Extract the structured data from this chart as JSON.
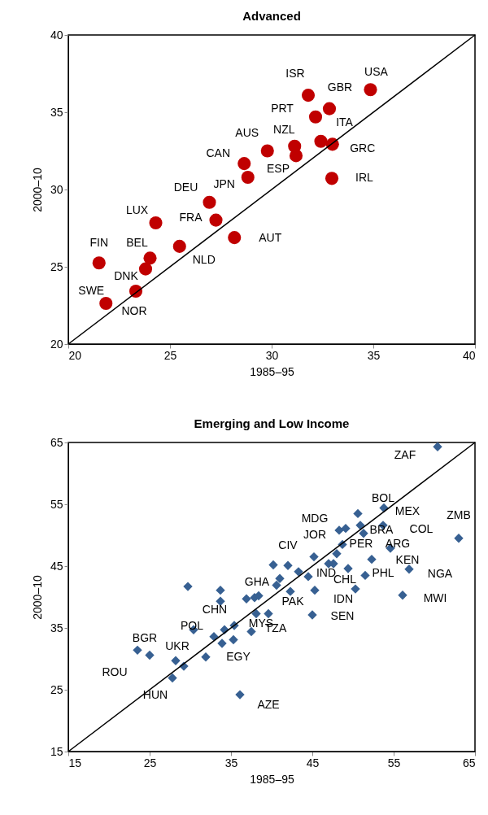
{
  "chart_data": [
    {
      "type": "scatter",
      "title": "Advanced",
      "xlabel": "1985–95",
      "ylabel": "2000–10",
      "marker": "circle",
      "xlim": [
        20,
        40
      ],
      "ylim": [
        20,
        40
      ],
      "xticks": [
        20,
        25,
        30,
        35,
        40
      ],
      "yticks": [
        20,
        25,
        30,
        35,
        40
      ],
      "series": [
        {
          "color": "#c00000",
          "x": [
            31.8,
            34.86,
            32.84,
            32.16,
            32.42,
            32.99,
            31.13,
            31.2,
            29.79,
            28.65,
            28.83,
            32.96,
            26.94,
            27.26,
            24.3,
            28.17,
            25.47,
            24.02,
            23.8,
            21.51,
            23.32,
            21.85
          ],
          "values": [
            36.1,
            36.46,
            35.23,
            34.7,
            33.12,
            32.93,
            32.8,
            32.19,
            32.5,
            31.68,
            30.79,
            30.72,
            29.17,
            28.02,
            27.84,
            26.89,
            26.32,
            25.56,
            24.86,
            25.25,
            23.42,
            22.63
          ]
        },
        {
          "type": "line",
          "marker": "none",
          "color": "#000000",
          "x": [
            20,
            40
          ],
          "values": [
            20,
            40
          ]
        }
      ],
      "annotations": [
        {
          "text": "ISR",
          "x": 31.8,
          "y": 36.1
        },
        {
          "text": "USA",
          "x": 34.86,
          "y": 36.46
        },
        {
          "text": "GBR",
          "x": 32.84,
          "y": 35.23
        },
        {
          "text": "PRT",
          "x": 32.16,
          "y": 34.7
        },
        {
          "text": "ITA",
          "x": 32.42,
          "y": 33.12
        },
        {
          "text": "AUS",
          "x": 29.79,
          "y": 32.5
        },
        {
          "text": "NZL",
          "x": 31.13,
          "y": 32.8
        },
        {
          "text": "CAN",
          "x": 28.65,
          "y": 31.68
        },
        {
          "text": "GRC",
          "x": 32.99,
          "y": 32.93
        },
        {
          "text": "ESP",
          "x": 31.2,
          "y": 32.19
        },
        {
          "text": "IRL",
          "x": 32.96,
          "y": 30.72
        },
        {
          "text": "DEU",
          "x": 26.94,
          "y": 29.17
        },
        {
          "text": "JPN",
          "x": 28.83,
          "y": 30.79
        },
        {
          "text": "LUX",
          "x": 24.3,
          "y": 27.84
        },
        {
          "text": "FRA",
          "x": 27.26,
          "y": 28.02
        },
        {
          "text": "AUT",
          "x": 28.17,
          "y": 26.89
        },
        {
          "text": "FIN",
          "x": 21.51,
          "y": 25.25
        },
        {
          "text": "BEL",
          "x": 24.02,
          "y": 25.56
        },
        {
          "text": "NLD",
          "x": 25.47,
          "y": 26.32
        },
        {
          "text": "DNK",
          "x": 23.8,
          "y": 24.86
        },
        {
          "text": "SWE",
          "x": 21.85,
          "y": 22.63
        },
        {
          "text": "NOR",
          "x": 23.32,
          "y": 23.42
        }
      ]
    },
    {
      "type": "scatter",
      "title": "Emerging and Low Income",
      "xlabel": "1985–95",
      "ylabel": "2000–10",
      "marker": "diamond",
      "xlim": [
        15,
        65
      ],
      "ylim": [
        15,
        65
      ],
      "xticks": [
        15,
        25,
        35,
        45,
        55,
        65
      ],
      "yticks": [
        15,
        25,
        35,
        45,
        55,
        65
      ],
      "series": [
        {
          "color": "#376092",
          "x": [
            60.4,
            53.8,
            50.6,
            53.7,
            50.9,
            48.3,
            49.1,
            51.3,
            63.0,
            48.7,
            54.6,
            48.0,
            45.2,
            52.3,
            47.0,
            47.6,
            49.4,
            40.2,
            42.0,
            56.9,
            43.3,
            51.5,
            44.5,
            41.0,
            50.3,
            45.3,
            29.7,
            33.7,
            56.1,
            40.6,
            36.9,
            37.9,
            38.4,
            42.3,
            33.7,
            38.1,
            39.6,
            45.0,
            37.5,
            30.4,
            34.2,
            35.4,
            32.9,
            33.9,
            35.3,
            31.9,
            23.5,
            25.0,
            28.2,
            29.2,
            27.8,
            36.1
          ],
          "values": [
            64.3,
            54.4,
            53.5,
            51.6,
            51.6,
            50.8,
            51.1,
            50.3,
            49.5,
            48.5,
            47.9,
            47.0,
            46.5,
            46.1,
            45.4,
            45.4,
            44.6,
            45.2,
            45.1,
            44.5,
            44.1,
            43.5,
            43.3,
            43.0,
            41.3,
            41.1,
            41.7,
            41.1,
            40.3,
            41.9,
            39.7,
            39.9,
            40.2,
            40.9,
            39.3,
            37.3,
            37.3,
            37.1,
            34.4,
            34.7,
            34.7,
            35.4,
            33.6,
            32.5,
            33.1,
            30.3,
            31.4,
            30.6,
            29.7,
            28.8,
            26.9,
            24.2
          ]
        },
        {
          "type": "line",
          "marker": "none",
          "color": "#000000",
          "x": [
            15,
            65
          ],
          "values": [
            15,
            65
          ]
        }
      ],
      "annotations": [
        {
          "text": "ZAF",
          "x": 60.4,
          "y": 64.3
        },
        {
          "text": "BOL",
          "x": 53.8,
          "y": 54.4
        },
        {
          "text": "MEX",
          "x": 53.7,
          "y": 51.6
        },
        {
          "text": "ZMB",
          "x": 63.0,
          "y": 49.5
        },
        {
          "text": "MDG",
          "x": 48.3,
          "y": 50.8
        },
        {
          "text": "BRA",
          "x": 51.3,
          "y": 50.3
        },
        {
          "text": "COL",
          "x": 54.6,
          "y": 47.9
        },
        {
          "text": "JOR",
          "x": 48.7,
          "y": 48.5
        },
        {
          "text": "PER",
          "x": 48.0,
          "y": 47.0
        },
        {
          "text": "ARG",
          "x": 52.3,
          "y": 46.1
        },
        {
          "text": "CIV",
          "x": 45.2,
          "y": 46.5
        },
        {
          "text": "KEN",
          "x": 56.9,
          "y": 44.5
        },
        {
          "text": "NGA",
          "x": 56.9,
          "y": 44.5
        },
        {
          "text": "IND",
          "x": 44.5,
          "y": 43.3
        },
        {
          "text": "PHL",
          "x": 51.5,
          "y": 43.5
        },
        {
          "text": "CHL",
          "x": 50.3,
          "y": 41.3
        },
        {
          "text": "GHA",
          "x": 40.6,
          "y": 41.9
        },
        {
          "text": "MWI",
          "x": 56.1,
          "y": 40.3
        },
        {
          "text": "IDN",
          "x": 45.3,
          "y": 41.1
        },
        {
          "text": "PAK",
          "x": 42.3,
          "y": 40.9
        },
        {
          "text": "CHN",
          "x": 33.7,
          "y": 39.3
        },
        {
          "text": "MYS",
          "x": 38.1,
          "y": 37.3
        },
        {
          "text": "SEN",
          "x": 45.0,
          "y": 37.1
        },
        {
          "text": "POL",
          "x": 30.4,
          "y": 34.7
        },
        {
          "text": "TZA",
          "x": 37.5,
          "y": 34.4
        },
        {
          "text": "BGR",
          "x": 23.5,
          "y": 31.4
        },
        {
          "text": "UKR",
          "x": 28.2,
          "y": 29.7
        },
        {
          "text": "EGY",
          "x": 31.9,
          "y": 30.3
        },
        {
          "text": "ROU",
          "x": 25.0,
          "y": 30.6
        },
        {
          "text": "HUN",
          "x": 27.8,
          "y": 26.9
        },
        {
          "text": "AZE",
          "x": 36.1,
          "y": 24.2
        }
      ]
    }
  ]
}
